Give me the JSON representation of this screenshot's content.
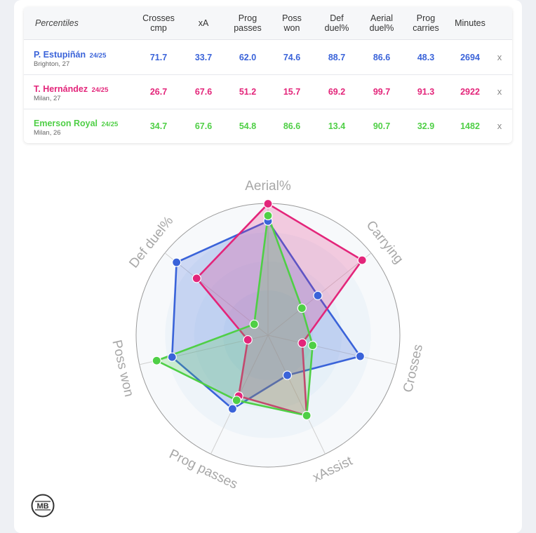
{
  "table": {
    "header_label": "Percentiles",
    "columns": [
      [
        "Crosses",
        "cmp"
      ],
      [
        "xA"
      ],
      [
        "Prog",
        "passes"
      ],
      [
        "Poss",
        "won"
      ],
      [
        "Def",
        "duel%"
      ],
      [
        "Aerial",
        "duel%"
      ],
      [
        "Prog",
        "carries"
      ],
      [
        "Minutes"
      ]
    ],
    "remove_symbol": "x"
  },
  "players": [
    {
      "name": "P. Estupiñán",
      "season": "24/25",
      "meta": "Brighton, 27",
      "color": "#3a63d9",
      "values": [
        "71.7",
        "33.7",
        "62.0",
        "74.6",
        "88.7",
        "86.6",
        "48.3",
        "2694"
      ]
    },
    {
      "name": "T. Hernández",
      "season": "24/25",
      "meta": "Milan, 27",
      "color": "#e3257a",
      "values": [
        "26.7",
        "67.6",
        "51.2",
        "15.7",
        "69.2",
        "99.7",
        "91.3",
        "2922"
      ]
    },
    {
      "name": "Emerson Royal",
      "season": "24/25",
      "meta": "Milan, 26",
      "color": "#4fcf46",
      "values": [
        "34.7",
        "67.6",
        "54.8",
        "86.6",
        "13.4",
        "90.7",
        "32.9",
        "1482"
      ]
    }
  ],
  "chart_data": {
    "type": "radar",
    "axes": [
      "Aerial%",
      "Carrying",
      "Crosses",
      "xAssist",
      "Prog passes",
      "Poss won",
      "Def duel%"
    ],
    "range": [
      0,
      100
    ],
    "series": [
      {
        "name": "P. Estupiñán",
        "color": "#3a63d9",
        "values": [
          86.6,
          48.3,
          71.7,
          33.7,
          62.0,
          74.6,
          88.7
        ]
      },
      {
        "name": "T. Hernández",
        "color": "#e3257a",
        "values": [
          99.7,
          91.3,
          26.7,
          67.6,
          51.2,
          15.7,
          69.2
        ]
      },
      {
        "name": "Emerson Royal",
        "color": "#4fcf46",
        "values": [
          90.7,
          32.9,
          34.7,
          67.6,
          54.8,
          86.6,
          13.4
        ]
      }
    ]
  },
  "logo_text": "MB"
}
